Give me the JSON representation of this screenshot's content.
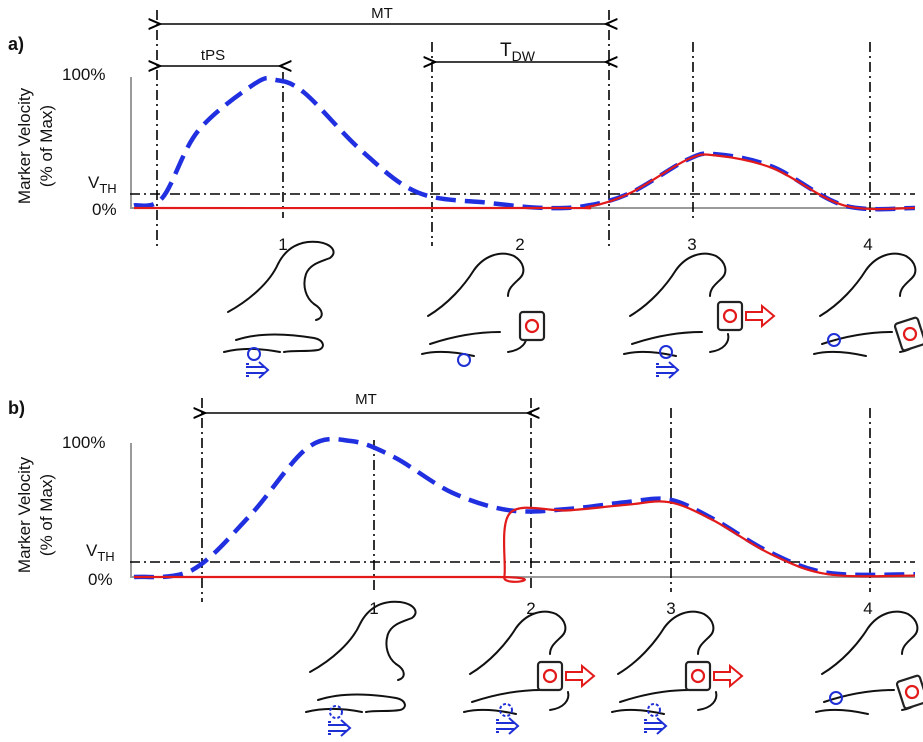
{
  "colors": {
    "all_fingers": "#2030e0",
    "thumb_index": "#e21a1a",
    "threshold": "#000000",
    "axis": "#9a9a9a"
  },
  "panels": [
    {
      "id": "a",
      "panel_label": "a)",
      "ylabel_line1": "Marker Velocity",
      "ylabel_line2": "(% of Max)",
      "ytick_max": "100%",
      "ytick_min": "0%",
      "threshold_label": "V",
      "threshold_sub": "TH",
      "dim_mt": "MT",
      "dim_tps": "tPS",
      "dim_tdw_main": "T",
      "dim_tdw_sub": "DW",
      "phase_labels": [
        "1",
        "2",
        "3",
        "4"
      ],
      "blue_curve": [
        [
          0,
          0.02
        ],
        [
          0.2,
          0.08
        ],
        [
          0.45,
          0.6
        ],
        [
          0.85,
          0.97
        ],
        [
          1.0,
          1.0
        ],
        [
          1.2,
          0.9
        ],
        [
          1.6,
          0.45
        ],
        [
          2.0,
          0.12
        ],
        [
          2.5,
          0.04
        ],
        [
          2.9,
          0.0
        ],
        [
          3.2,
          0.02
        ],
        [
          3.5,
          0.12
        ],
        [
          3.9,
          0.38
        ],
        [
          4.1,
          0.42
        ],
        [
          4.5,
          0.32
        ],
        [
          5.0,
          0.02
        ],
        [
          5.5,
          0.0
        ]
      ],
      "red_curve": [
        [
          0,
          0.0
        ],
        [
          2.9,
          0.0
        ],
        [
          3.2,
          0.01
        ],
        [
          3.5,
          0.12
        ],
        [
          3.9,
          0.38
        ],
        [
          4.1,
          0.41
        ],
        [
          4.5,
          0.31
        ],
        [
          5.0,
          0.02
        ],
        [
          5.5,
          0.0
        ]
      ]
    },
    {
      "id": "b",
      "panel_label": "b)",
      "ylabel_line1": "Marker Velocity",
      "ylabel_line2": "(% of Max)",
      "ytick_max": "100%",
      "ytick_min": "0%",
      "threshold_label": "V",
      "threshold_sub": "TH",
      "dim_mt": "MT",
      "phase_labels": [
        "1",
        "2",
        "3",
        "4"
      ],
      "blue_curve": [
        [
          0,
          0.0
        ],
        [
          0.4,
          0.05
        ],
        [
          0.8,
          0.45
        ],
        [
          1.2,
          0.95
        ],
        [
          1.5,
          1.0
        ],
        [
          1.8,
          0.88
        ],
        [
          2.2,
          0.62
        ],
        [
          2.6,
          0.49
        ],
        [
          3.0,
          0.5
        ],
        [
          3.4,
          0.55
        ],
        [
          3.7,
          0.57
        ],
        [
          4.0,
          0.43
        ],
        [
          4.4,
          0.18
        ],
        [
          4.8,
          0.03
        ],
        [
          5.4,
          0.02
        ]
      ],
      "red_curve": [
        [
          0,
          0.0
        ],
        [
          2.5,
          0.0
        ],
        [
          2.56,
          0.0
        ],
        [
          2.6,
          0.47
        ],
        [
          3.0,
          0.49
        ],
        [
          3.4,
          0.53
        ],
        [
          3.7,
          0.55
        ],
        [
          4.0,
          0.42
        ],
        [
          4.4,
          0.17
        ],
        [
          4.8,
          0.02
        ],
        [
          5.4,
          0.01
        ]
      ]
    }
  ]
}
